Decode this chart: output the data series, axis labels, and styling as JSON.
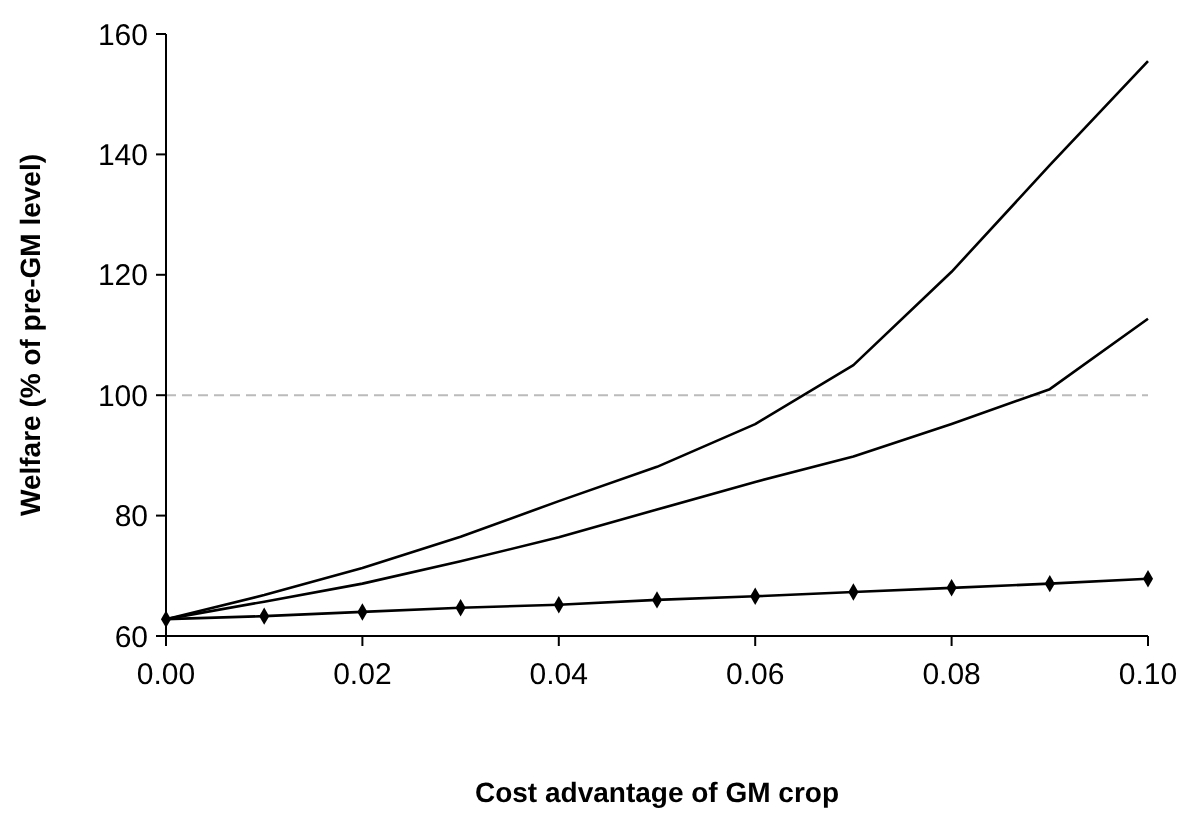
{
  "chart_data": {
    "type": "line",
    "xlabel": "Cost advantage of GM crop",
    "ylabel": "Welfare (% of pre-GM level)",
    "x": [
      0,
      0.01,
      0.02,
      0.03,
      0.04,
      0.05,
      0.06,
      0.07,
      0.08,
      0.09,
      0.1
    ],
    "series": [
      {
        "color": "#000000",
        "marker": "none",
        "values": [
          62.8,
          66.8,
          71.3,
          76.5,
          82.4,
          88.1,
          95.2,
          105,
          120.5,
          138.2,
          155.5
        ]
      },
      {
        "color": "#000000",
        "marker": "none",
        "values": [
          62.8,
          65.7,
          68.7,
          72.4,
          76.4,
          81,
          85.6,
          89.8,
          95.2,
          101,
          112.7
        ]
      },
      {
        "color": "#000000",
        "marker": "diamond",
        "values": [
          62.8,
          63.3,
          64,
          64.7,
          65.2,
          66,
          66.6,
          67.3,
          68,
          68.7,
          69.5
        ]
      }
    ],
    "xlim": [
      0,
      0.1
    ],
    "ylim": [
      60,
      160
    ],
    "xticks": [
      {
        "value": 0,
        "label": "0.00"
      },
      {
        "value": 0.02,
        "label": "0.02"
      },
      {
        "value": 0.04,
        "label": "0.04"
      },
      {
        "value": 0.06,
        "label": "0.06"
      },
      {
        "value": 0.08,
        "label": "0.08"
      },
      {
        "value": 0.1,
        "label": "0.10"
      }
    ],
    "yticks": [
      60,
      80,
      100,
      120,
      140,
      160
    ],
    "ref_lines": [
      {
        "axis": "y",
        "value": 100,
        "color": "#bbbbbb",
        "line_style": "dashed"
      }
    ],
    "grid": false,
    "line_style": "solid"
  }
}
